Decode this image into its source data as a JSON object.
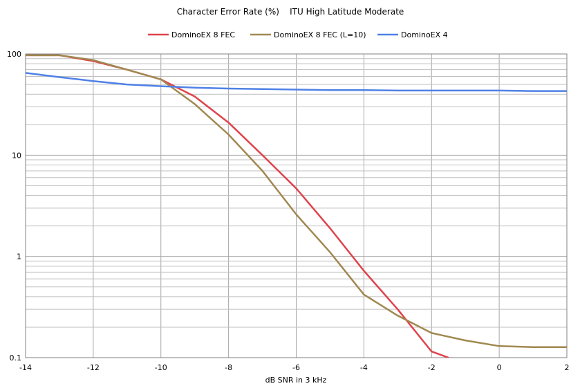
{
  "chart_data": {
    "type": "line",
    "title": "Character Error Rate (%)    ITU High Latitude Moderate",
    "xlabel": "dB SNR in 3 kHz",
    "ylabel": "",
    "xlim": [
      -14,
      2
    ],
    "ylim": [
      0.1,
      100
    ],
    "yscale": "log",
    "grid": true,
    "legend_position": "top",
    "x_ticks": [
      "-14",
      "-12",
      "-10",
      "-8",
      "-6",
      "-4",
      "-2",
      "0",
      "2"
    ],
    "y_ticks": [
      "0.1",
      "1",
      "10",
      "100"
    ],
    "series": [
      {
        "name": "DominoEX  8 FEC",
        "color": "#e0434c",
        "points": [
          [
            -14,
            97
          ],
          [
            -13,
            97
          ],
          [
            -12,
            85
          ],
          [
            -11,
            70
          ],
          [
            -10,
            56
          ],
          [
            -9,
            38
          ],
          [
            -8,
            21
          ],
          [
            -7,
            10
          ],
          [
            -6,
            4.7
          ],
          [
            -5,
            1.9
          ],
          [
            -4,
            0.72
          ],
          [
            -3,
            0.3
          ],
          [
            -2,
            0.115
          ],
          [
            -1.5,
            0.1
          ]
        ]
      },
      {
        "name": "DominoEX 8 FEC (L=10)",
        "color": "#a08850",
        "points": [
          [
            -14,
            97
          ],
          [
            -13,
            97
          ],
          [
            -12,
            87
          ],
          [
            -11,
            70
          ],
          [
            -10,
            56
          ],
          [
            -9,
            32
          ],
          [
            -8,
            16
          ],
          [
            -7,
            7
          ],
          [
            -6,
            2.6
          ],
          [
            -5,
            1.1
          ],
          [
            -4,
            0.42
          ],
          [
            -3,
            0.26
          ],
          [
            -2,
            0.175
          ],
          [
            -1,
            0.148
          ],
          [
            0,
            0.13
          ],
          [
            1,
            0.127
          ],
          [
            2,
            0.127
          ]
        ]
      },
      {
        "name": "DominoEX 4",
        "color": "#4f81e6",
        "points": [
          [
            -14,
            65
          ],
          [
            -13,
            59
          ],
          [
            -12,
            54
          ],
          [
            -11,
            50
          ],
          [
            -10,
            48
          ],
          [
            -9,
            46.5
          ],
          [
            -8,
            45.5
          ],
          [
            -7,
            45
          ],
          [
            -6,
            44.5
          ],
          [
            -5,
            44
          ],
          [
            -4,
            44
          ],
          [
            -3,
            43.5
          ],
          [
            -2,
            43.5
          ],
          [
            -1,
            43.5
          ],
          [
            0,
            43.5
          ],
          [
            1,
            43
          ],
          [
            2,
            43
          ]
        ]
      }
    ]
  }
}
